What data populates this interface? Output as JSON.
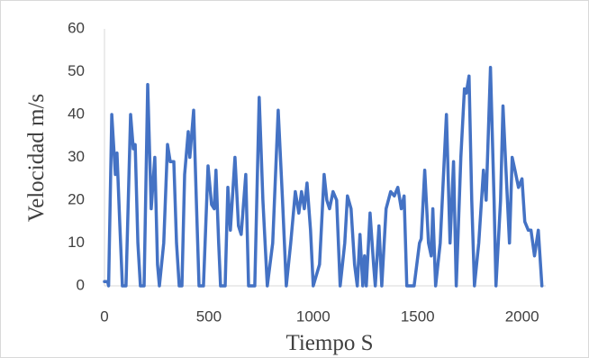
{
  "chart_data": {
    "type": "line",
    "x_label": "Tiempo S",
    "y_label": "Velocidad m/s",
    "xlim": [
      0,
      2200
    ],
    "ylim": [
      0,
      60
    ],
    "xticks": [
      0,
      500,
      1000,
      1500,
      2000
    ],
    "yticks": [
      0,
      10,
      20,
      30,
      40,
      50,
      60
    ],
    "grid": false,
    "series": [
      {
        "name": "Velocidad",
        "color": "#4472c4",
        "x": [
          0,
          15,
          20,
          35,
          52,
          60,
          73,
          86,
          103,
          125,
          138,
          147,
          160,
          172,
          190,
          207,
          224,
          241,
          254,
          263,
          284,
          302,
          315,
          332,
          345,
          358,
          371,
          384,
          401,
          409,
          427,
          440,
          453,
          474,
          496,
          513,
          526,
          534,
          547,
          556,
          578,
          591,
          603,
          625,
          642,
          655,
          677,
          690,
          720,
          741,
          759,
          780,
          806,
          832,
          853,
          871,
          892,
          914,
          931,
          944,
          957,
          970,
          987,
          1000,
          1030,
          1052,
          1065,
          1078,
          1095,
          1112,
          1129,
          1151,
          1164,
          1181,
          1198,
          1211,
          1224,
          1237,
          1246,
          1254,
          1272,
          1289,
          1297,
          1315,
          1328,
          1349,
          1371,
          1388,
          1405,
          1422,
          1435,
          1448,
          1483,
          1509,
          1517,
          1534,
          1552,
          1565,
          1573,
          1586,
          1608,
          1638,
          1655,
          1672,
          1685,
          1707,
          1724,
          1733,
          1746,
          1759,
          1772,
          1793,
          1815,
          1828,
          1849,
          1866,
          1875,
          1897,
          1909,
          1922,
          1940,
          1953,
          1966,
          1983,
          2000,
          2013,
          2030,
          2043,
          2060,
          2078,
          2095
        ],
        "values": [
          1,
          1,
          0,
          40,
          26,
          31,
          15,
          0,
          0,
          40,
          32,
          33,
          10,
          0,
          0,
          47,
          18,
          30,
          5,
          0,
          10,
          33,
          29,
          29,
          10,
          0,
          0,
          26,
          36,
          30,
          41,
          20,
          0,
          0,
          28,
          19,
          18,
          27,
          10,
          0,
          0,
          23,
          13,
          30,
          14,
          12,
          26,
          0,
          0,
          44,
          20,
          0,
          10,
          41,
          20,
          0,
          10,
          22,
          17,
          22,
          18,
          24,
          13,
          0,
          5,
          26,
          20,
          18,
          22,
          20,
          0,
          10,
          21,
          18,
          5,
          0,
          12,
          0,
          7,
          0,
          17,
          5,
          0,
          14,
          0,
          18,
          22,
          21,
          23,
          18,
          21,
          0,
          0,
          10,
          11,
          27,
          10,
          7,
          18,
          0,
          10,
          40,
          10,
          29,
          0,
          30,
          46,
          45,
          49,
          20,
          0,
          10,
          27,
          20,
          51,
          20,
          0,
          20,
          42,
          28,
          10,
          30,
          27,
          23,
          25,
          15,
          13,
          13,
          7,
          13,
          0
        ]
      }
    ]
  }
}
